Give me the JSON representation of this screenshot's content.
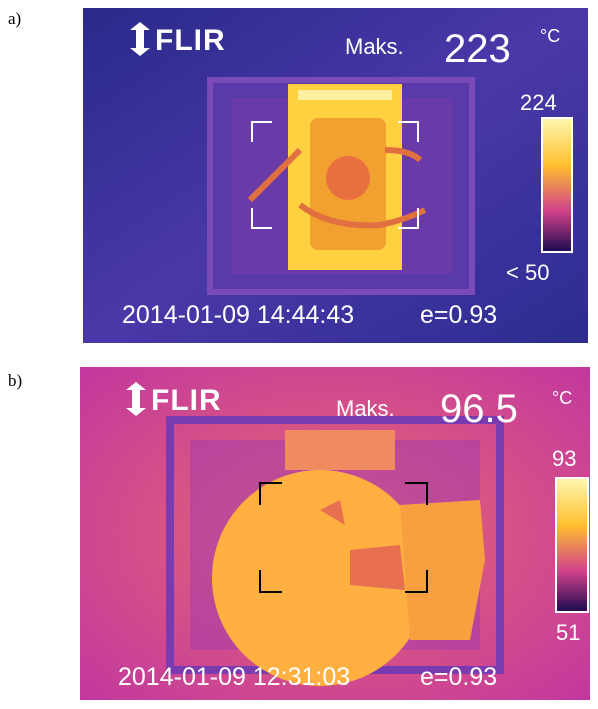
{
  "panels": [
    {
      "label": "a)",
      "brand": "FLIR",
      "max_label": "Maks.",
      "max_value": "223",
      "unit": "°C",
      "scale_top": "224",
      "scale_bottom": "< 50",
      "timestamp": "2014-01-09 14:44:43",
      "emissivity": "e=0.93"
    },
    {
      "label": "b)",
      "brand": "FLIR",
      "max_label": "Maks.",
      "max_value": "96.5",
      "unit": "°C",
      "scale_top": "93",
      "scale_bottom": "51",
      "timestamp": "2014-01-09 12:31:03",
      "emissivity": "e=0.93"
    }
  ]
}
